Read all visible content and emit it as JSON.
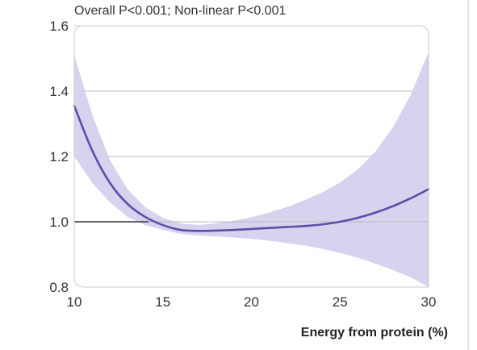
{
  "chart_data": {
    "type": "line",
    "annotation": "Overall P<0.001; Non-linear P<0.001",
    "xlabel": "Energy from protein (%)",
    "ylabel": "",
    "xlim": [
      10,
      30
    ],
    "ylim": [
      0.8,
      1.6
    ],
    "x_ticks": [
      "10",
      "15",
      "20",
      "25",
      "30"
    ],
    "y_ticks": [
      "0.8",
      "1.0",
      "1.2",
      "1.4",
      "1.6"
    ],
    "x_tick_values": [
      10,
      15,
      20,
      25,
      30
    ],
    "y_tick_values": [
      0.8,
      1.0,
      1.2,
      1.4,
      1.6
    ],
    "gridlines_y": [
      1.2,
      1.4
    ],
    "reference_line": 1.0,
    "grid": true,
    "colors": {
      "line": "#5b4ea8",
      "ci_band": "#d7d2ee",
      "gridline": "#bbbbbb",
      "reference": "#333333",
      "frame": "#cccccc"
    },
    "series": [
      {
        "x": [
          10,
          11,
          12,
          13,
          14,
          15,
          16,
          17,
          18,
          19,
          20,
          21,
          22,
          23,
          24,
          25,
          26,
          27,
          28,
          29,
          30
        ],
        "values": [
          1.355,
          1.22,
          1.12,
          1.055,
          1.015,
          0.99,
          0.975,
          0.972,
          0.973,
          0.975,
          0.978,
          0.981,
          0.984,
          0.987,
          0.992,
          1.0,
          1.012,
          1.028,
          1.048,
          1.072,
          1.1
        ],
        "ci_lower": [
          1.2,
          1.12,
          1.06,
          1.015,
          0.99,
          0.975,
          0.963,
          0.958,
          0.955,
          0.952,
          0.948,
          0.942,
          0.935,
          0.927,
          0.917,
          0.905,
          0.89,
          0.872,
          0.852,
          0.83,
          0.8
        ],
        "ci_upper": [
          1.51,
          1.33,
          1.19,
          1.1,
          1.045,
          1.012,
          0.995,
          0.99,
          0.995,
          1.003,
          1.014,
          1.028,
          1.045,
          1.066,
          1.09,
          1.12,
          1.16,
          1.215,
          1.29,
          1.39,
          1.52
        ]
      }
    ]
  }
}
